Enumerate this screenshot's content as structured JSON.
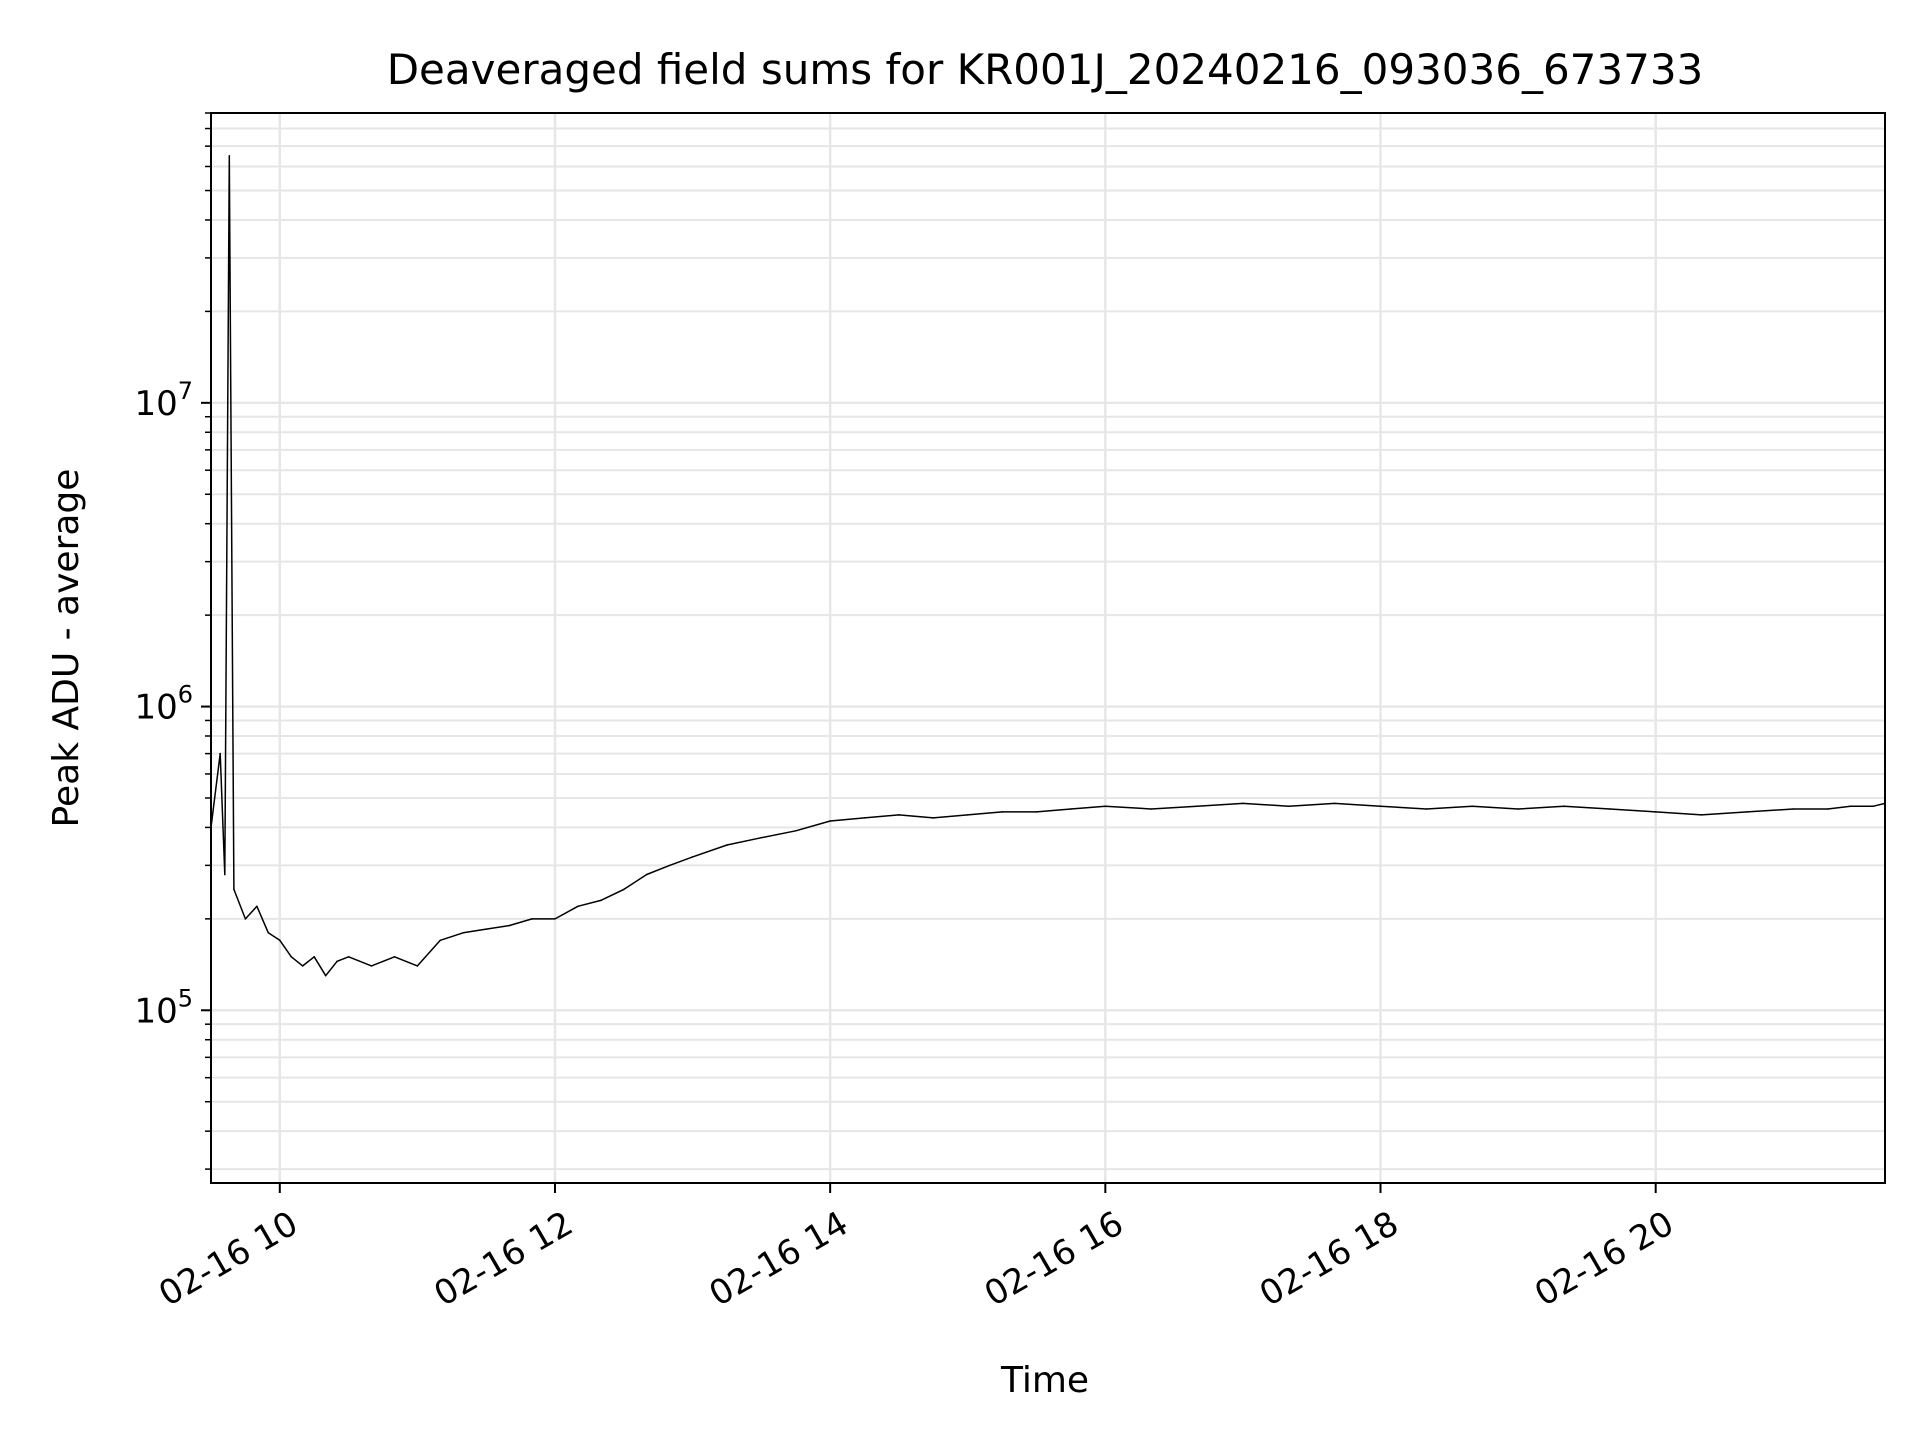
{
  "chart_data": {
    "type": "line",
    "title": "Deaveraged field sums for KR001J_20240216_093036_673733",
    "xlabel": "Time",
    "ylabel": "Peak ADU - average",
    "x_scale": "time",
    "y_scale": "log",
    "xlim": [
      "2024-02-16 09:30",
      "2024-02-16 21:40"
    ],
    "ylim": [
      27000,
      90000000
    ],
    "x_ticks": [
      {
        "value": "2024-02-16 10:00",
        "label": "02-16 10"
      },
      {
        "value": "2024-02-16 12:00",
        "label": "02-16 12"
      },
      {
        "value": "2024-02-16 14:00",
        "label": "02-16 14"
      },
      {
        "value": "2024-02-16 16:00",
        "label": "02-16 16"
      },
      {
        "value": "2024-02-16 18:00",
        "label": "02-16 18"
      },
      {
        "value": "2024-02-16 20:00",
        "label": "02-16 20"
      }
    ],
    "y_ticks": [
      {
        "value": 100000,
        "base": "10",
        "exp": "5"
      },
      {
        "value": 1000000,
        "base": "10",
        "exp": "6"
      },
      {
        "value": 10000000,
        "base": "10",
        "exp": "7"
      }
    ],
    "grid": true,
    "legend": false,
    "line_color": "#000000",
    "series": [
      {
        "x": [
          "2024-02-16 09:30",
          "2024-02-16 09:34",
          "2024-02-16 09:36",
          "2024-02-16 09:38",
          "2024-02-16 09:40",
          "2024-02-16 09:45",
          "2024-02-16 09:50",
          "2024-02-16 09:55",
          "2024-02-16 10:00",
          "2024-02-16 10:05",
          "2024-02-16 10:10",
          "2024-02-16 10:15",
          "2024-02-16 10:20",
          "2024-02-16 10:25",
          "2024-02-16 10:30",
          "2024-02-16 10:40",
          "2024-02-16 10:50",
          "2024-02-16 11:00",
          "2024-02-16 11:10",
          "2024-02-16 11:20",
          "2024-02-16 11:30",
          "2024-02-16 11:40",
          "2024-02-16 11:50",
          "2024-02-16 12:00",
          "2024-02-16 12:10",
          "2024-02-16 12:20",
          "2024-02-16 12:30",
          "2024-02-16 12:40",
          "2024-02-16 12:50",
          "2024-02-16 13:00",
          "2024-02-16 13:15",
          "2024-02-16 13:30",
          "2024-02-16 13:45",
          "2024-02-16 14:00",
          "2024-02-16 14:15",
          "2024-02-16 14:30",
          "2024-02-16 14:45",
          "2024-02-16 15:00",
          "2024-02-16 15:15",
          "2024-02-16 15:30",
          "2024-02-16 15:45",
          "2024-02-16 16:00",
          "2024-02-16 16:20",
          "2024-02-16 16:40",
          "2024-02-16 17:00",
          "2024-02-16 17:20",
          "2024-02-16 17:40",
          "2024-02-16 18:00",
          "2024-02-16 18:20",
          "2024-02-16 18:40",
          "2024-02-16 19:00",
          "2024-02-16 19:20",
          "2024-02-16 19:40",
          "2024-02-16 20:00",
          "2024-02-16 20:20",
          "2024-02-16 20:40",
          "2024-02-16 21:00",
          "2024-02-16 21:15",
          "2024-02-16 21:25",
          "2024-02-16 21:35",
          "2024-02-16 21:40"
        ],
        "values": [
          400000,
          700000,
          280000,
          65000000,
          250000,
          200000,
          220000,
          180000,
          170000,
          150000,
          140000,
          150000,
          130000,
          145000,
          150000,
          140000,
          150000,
          140000,
          170000,
          180000,
          185000,
          190000,
          200000,
          200000,
          220000,
          230000,
          250000,
          280000,
          300000,
          320000,
          350000,
          370000,
          390000,
          420000,
          430000,
          440000,
          430000,
          440000,
          450000,
          450000,
          460000,
          470000,
          460000,
          470000,
          480000,
          470000,
          480000,
          470000,
          460000,
          470000,
          460000,
          470000,
          460000,
          450000,
          440000,
          450000,
          460000,
          460000,
          470000,
          470000,
          480000
        ]
      }
    ]
  }
}
